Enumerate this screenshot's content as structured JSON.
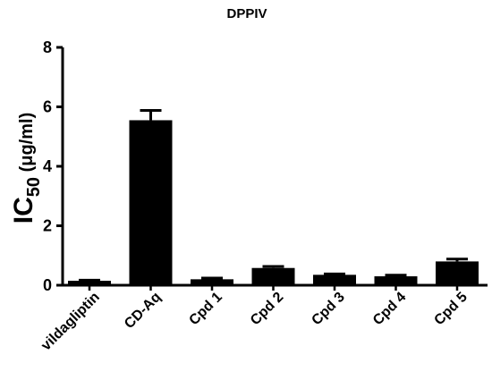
{
  "chart_data": {
    "type": "bar",
    "title": "DPPIV",
    "ylabel": {
      "main": "IC",
      "sub": "50",
      "unit": " (μg/ml)"
    },
    "xlabel": "",
    "categories": [
      "vildagliptin",
      "CD-Aq",
      "Cpd 1",
      "Cpd 2",
      "Cpd 3",
      "Cpd 4",
      "Cpd 5"
    ],
    "values": [
      0.15,
      5.55,
      0.2,
      0.58,
      0.35,
      0.3,
      0.8
    ],
    "errors": [
      0.02,
      0.33,
      0.04,
      0.05,
      0.03,
      0.04,
      0.08
    ],
    "ylim": [
      0,
      8
    ],
    "yticks": [
      0,
      2,
      4,
      6,
      8
    ],
    "bar_color": "#000000",
    "grid": false,
    "legend": "none"
  }
}
